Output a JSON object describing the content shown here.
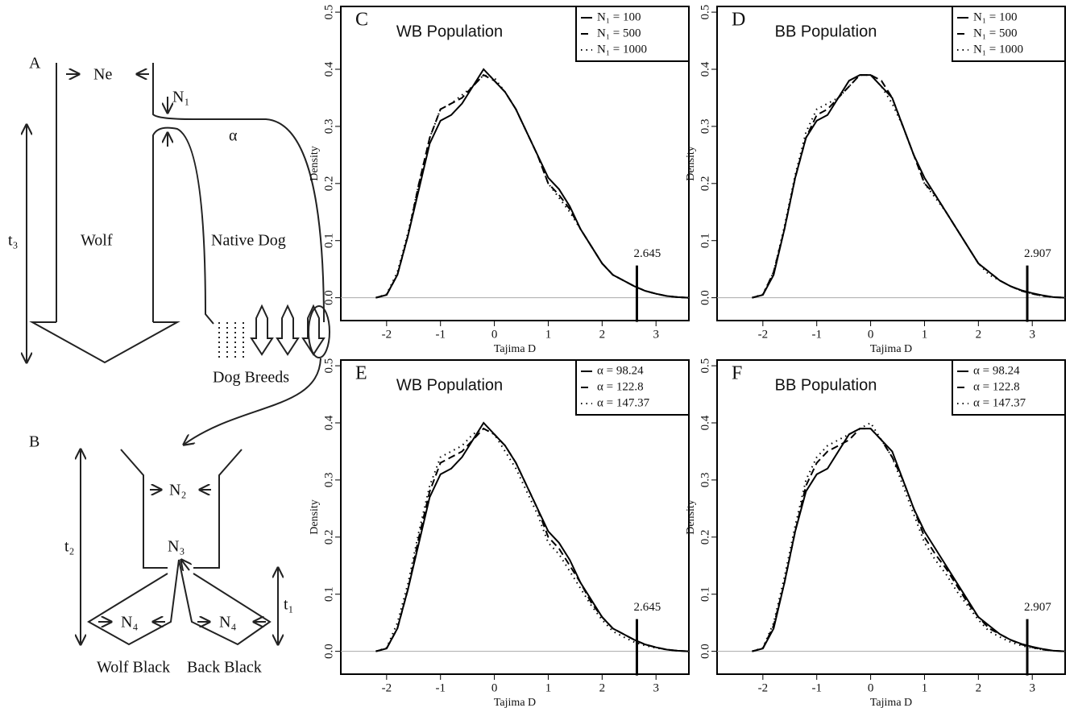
{
  "diagram": {
    "panel_a": "A",
    "ne": "Ne",
    "n1": "N₁",
    "alpha": "α",
    "t3": "t₃",
    "wolf": "Wolf",
    "native_dog": "Native Dog",
    "dog_breeds": "Dog Breeds",
    "panel_b": "B",
    "n2": "N₂",
    "n3": "N₃",
    "t2": "t₂",
    "t1": "t₁",
    "n4_left": "N₄",
    "n4_right": "N₄",
    "wolf_black": "Wolf Black",
    "back_black": "Back Black"
  },
  "chart_data": [
    {
      "type": "line",
      "panel": "C",
      "title": "WB Population",
      "x_label": "Tajima D",
      "y_label": "Density",
      "legend": "upper right",
      "threshold": 2.645,
      "xlim": [
        -2.85,
        3.61
      ],
      "xticks": [
        -2,
        -1,
        0,
        1,
        2,
        3
      ],
      "ylim": [
        -0.04,
        0.51
      ],
      "yticks": [
        {
          "value": 0,
          "label": "0.0"
        },
        0.1,
        0.2,
        0.3,
        0.4,
        0.5
      ],
      "x": [
        -2.2,
        -2.0,
        -1.8,
        -1.6,
        -1.4,
        -1.2,
        -1.0,
        -0.8,
        -0.6,
        -0.4,
        -0.2,
        0,
        0.2,
        0.4,
        0.6,
        0.8,
        1.0,
        1.2,
        1.4,
        1.6,
        1.8,
        2.0,
        2.2,
        2.4,
        2.6,
        2.8,
        3.0,
        3.2,
        3.4,
        3.6
      ],
      "series": [
        {
          "name": "N₁ = 100",
          "color": "#000000",
          "dash": "solid",
          "values": [
            0,
            0.005,
            0.04,
            0.11,
            0.19,
            0.27,
            0.31,
            0.32,
            0.34,
            0.37,
            0.4,
            0.38,
            0.36,
            0.33,
            0.29,
            0.25,
            0.21,
            0.19,
            0.16,
            0.12,
            0.09,
            0.06,
            0.04,
            0.03,
            0.02,
            0.012,
            0.007,
            0.003,
            0.001,
            0
          ]
        },
        {
          "name": "N₁ = 500",
          "color": "#000000",
          "dash": "dashed",
          "values": [
            0,
            0.005,
            0.04,
            0.11,
            0.2,
            0.28,
            0.33,
            0.34,
            0.35,
            0.37,
            0.39,
            0.38,
            0.36,
            0.33,
            0.29,
            0.25,
            0.2,
            0.18,
            0.155,
            0.12,
            0.09,
            0.06,
            0.04,
            0.03,
            0.02,
            0.012,
            0.007,
            0.003,
            0.001,
            0
          ]
        },
        {
          "name": "N₁ = 1000",
          "color": "#000000",
          "dash": "dotted",
          "values": [
            0,
            0.006,
            0.045,
            0.115,
            0.2,
            0.28,
            0.33,
            0.34,
            0.355,
            0.37,
            0.39,
            0.385,
            0.36,
            0.33,
            0.29,
            0.25,
            0.2,
            0.175,
            0.15,
            0.12,
            0.09,
            0.06,
            0.04,
            0.03,
            0.02,
            0.012,
            0.007,
            0.003,
            0.001,
            0
          ]
        }
      ]
    },
    {
      "type": "line",
      "panel": "D",
      "title": "BB Population",
      "x_label": "Tajima D",
      "y_label": "Density",
      "legend": "upper right",
      "threshold": 2.907,
      "xlim": [
        -2.85,
        3.61
      ],
      "xticks": [
        -2,
        -1,
        0,
        1,
        2,
        3
      ],
      "ylim": [
        -0.04,
        0.51
      ],
      "yticks": [
        {
          "value": 0,
          "label": "0.0"
        },
        0.1,
        0.2,
        0.3,
        0.4,
        0.5
      ],
      "x": [
        -2.2,
        -2.0,
        -1.8,
        -1.6,
        -1.4,
        -1.2,
        -1.0,
        -0.8,
        -0.6,
        -0.4,
        -0.2,
        0,
        0.2,
        0.4,
        0.6,
        0.8,
        1.0,
        1.2,
        1.4,
        1.6,
        1.8,
        2.0,
        2.2,
        2.4,
        2.6,
        2.8,
        3.0,
        3.2,
        3.4,
        3.6
      ],
      "series": [
        {
          "name": "N₁ = 100",
          "color": "#000000",
          "dash": "solid",
          "values": [
            0,
            0.005,
            0.04,
            0.12,
            0.21,
            0.28,
            0.31,
            0.32,
            0.35,
            0.38,
            0.39,
            0.39,
            0.37,
            0.35,
            0.3,
            0.25,
            0.21,
            0.18,
            0.15,
            0.12,
            0.09,
            0.06,
            0.045,
            0.03,
            0.02,
            0.013,
            0.008,
            0.004,
            0.001,
            0
          ]
        },
        {
          "name": "N₁ = 500",
          "color": "#000000",
          "dash": "dashed",
          "values": [
            0,
            0.005,
            0.045,
            0.12,
            0.21,
            0.28,
            0.32,
            0.33,
            0.35,
            0.37,
            0.39,
            0.39,
            0.38,
            0.35,
            0.3,
            0.25,
            0.2,
            0.18,
            0.15,
            0.12,
            0.09,
            0.06,
            0.045,
            0.03,
            0.02,
            0.012,
            0.007,
            0.003,
            0.001,
            0
          ]
        },
        {
          "name": "N₁ = 1000",
          "color": "#000000",
          "dash": "dotted",
          "values": [
            0,
            0.006,
            0.045,
            0.125,
            0.215,
            0.29,
            0.33,
            0.34,
            0.35,
            0.37,
            0.39,
            0.39,
            0.37,
            0.34,
            0.3,
            0.25,
            0.2,
            0.175,
            0.15,
            0.12,
            0.09,
            0.06,
            0.04,
            0.03,
            0.02,
            0.012,
            0.007,
            0.003,
            0.001,
            0
          ]
        }
      ]
    },
    {
      "type": "line",
      "panel": "E",
      "title": "WB Population",
      "x_label": "Tajima D",
      "y_label": "Density",
      "legend": "upper right",
      "threshold": 2.645,
      "xlim": [
        -2.85,
        3.61
      ],
      "xticks": [
        -2,
        -1,
        0,
        1,
        2,
        3
      ],
      "ylim": [
        -0.04,
        0.51
      ],
      "yticks": [
        {
          "value": 0,
          "label": "0.0"
        },
        0.1,
        0.2,
        0.3,
        0.4,
        0.5
      ],
      "x": [
        -2.2,
        -2.0,
        -1.8,
        -1.6,
        -1.4,
        -1.2,
        -1.0,
        -0.8,
        -0.6,
        -0.4,
        -0.2,
        0,
        0.2,
        0.4,
        0.6,
        0.8,
        1.0,
        1.2,
        1.4,
        1.6,
        1.8,
        2.0,
        2.2,
        2.4,
        2.6,
        2.8,
        3.0,
        3.2,
        3.4,
        3.6
      ],
      "series": [
        {
          "name": "α = 98.24",
          "color": "#000000",
          "dash": "solid",
          "values": [
            0,
            0.005,
            0.04,
            0.11,
            0.19,
            0.27,
            0.31,
            0.32,
            0.34,
            0.37,
            0.4,
            0.38,
            0.36,
            0.33,
            0.29,
            0.25,
            0.21,
            0.19,
            0.16,
            0.12,
            0.09,
            0.06,
            0.04,
            0.03,
            0.02,
            0.012,
            0.007,
            0.003,
            0.001,
            0
          ]
        },
        {
          "name": "α = 122.8",
          "color": "#000000",
          "dash": "dashed",
          "values": [
            0,
            0.005,
            0.04,
            0.11,
            0.2,
            0.28,
            0.33,
            0.34,
            0.35,
            0.37,
            0.39,
            0.38,
            0.36,
            0.33,
            0.29,
            0.25,
            0.2,
            0.18,
            0.15,
            0.12,
            0.085,
            0.06,
            0.04,
            0.03,
            0.02,
            0.012,
            0.007,
            0.003,
            0.001,
            0
          ]
        },
        {
          "name": "α = 147.37",
          "color": "#000000",
          "dash": "dotted",
          "values": [
            0,
            0.006,
            0.05,
            0.12,
            0.21,
            0.29,
            0.34,
            0.35,
            0.36,
            0.38,
            0.39,
            0.38,
            0.35,
            0.32,
            0.28,
            0.24,
            0.19,
            0.17,
            0.14,
            0.11,
            0.08,
            0.055,
            0.035,
            0.025,
            0.016,
            0.01,
            0.006,
            0.003,
            0.001,
            0
          ]
        }
      ]
    },
    {
      "type": "line",
      "panel": "F",
      "title": "BB Population",
      "x_label": "Tajima D",
      "y_label": "Density",
      "legend": "upper right",
      "threshold": 2.907,
      "xlim": [
        -2.85,
        3.61
      ],
      "xticks": [
        -2,
        -1,
        0,
        1,
        2,
        3
      ],
      "ylim": [
        -0.04,
        0.51
      ],
      "yticks": [
        {
          "value": 0,
          "label": "0.0"
        },
        0.1,
        0.2,
        0.3,
        0.4,
        0.5
      ],
      "x": [
        -2.2,
        -2.0,
        -1.8,
        -1.6,
        -1.4,
        -1.2,
        -1.0,
        -0.8,
        -0.6,
        -0.4,
        -0.2,
        0,
        0.2,
        0.4,
        0.6,
        0.8,
        1.0,
        1.2,
        1.4,
        1.6,
        1.8,
        2.0,
        2.2,
        2.4,
        2.6,
        2.8,
        3.0,
        3.2,
        3.4,
        3.6
      ],
      "series": [
        {
          "name": "α = 98.24",
          "color": "#000000",
          "dash": "solid",
          "values": [
            0,
            0.005,
            0.04,
            0.12,
            0.21,
            0.28,
            0.31,
            0.32,
            0.35,
            0.38,
            0.39,
            0.39,
            0.37,
            0.35,
            0.3,
            0.25,
            0.21,
            0.18,
            0.15,
            0.12,
            0.09,
            0.06,
            0.045,
            0.03,
            0.02,
            0.013,
            0.008,
            0.004,
            0.001,
            0
          ]
        },
        {
          "name": "α = 122.8",
          "color": "#000000",
          "dash": "dashed",
          "values": [
            0,
            0.005,
            0.045,
            0.12,
            0.21,
            0.29,
            0.33,
            0.35,
            0.36,
            0.37,
            0.39,
            0.39,
            0.37,
            0.34,
            0.3,
            0.25,
            0.2,
            0.17,
            0.145,
            0.115,
            0.085,
            0.06,
            0.04,
            0.03,
            0.02,
            0.012,
            0.007,
            0.003,
            0.001,
            0
          ]
        },
        {
          "name": "α = 147.37",
          "color": "#000000",
          "dash": "dotted",
          "values": [
            0,
            0.006,
            0.05,
            0.13,
            0.22,
            0.3,
            0.34,
            0.36,
            0.37,
            0.38,
            0.39,
            0.4,
            0.37,
            0.34,
            0.29,
            0.24,
            0.19,
            0.16,
            0.135,
            0.105,
            0.08,
            0.055,
            0.035,
            0.025,
            0.016,
            0.01,
            0.006,
            0.003,
            0.001,
            0
          ]
        }
      ]
    }
  ]
}
